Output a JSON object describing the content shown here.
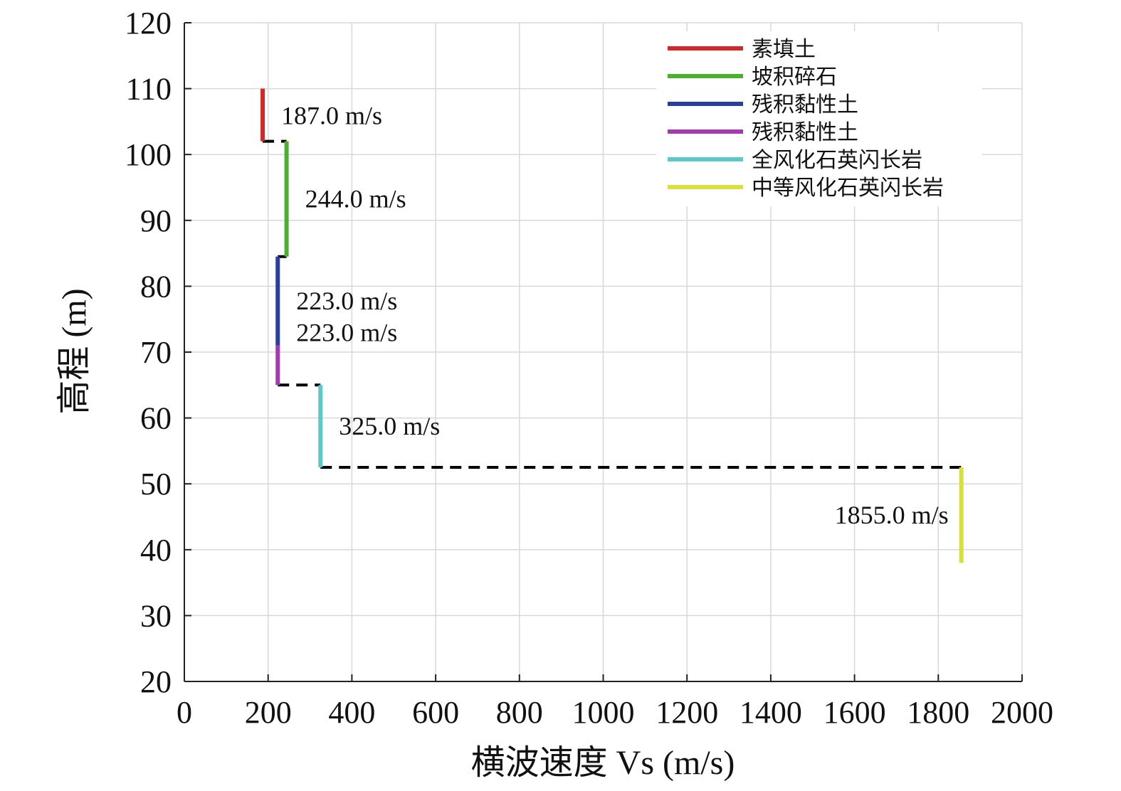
{
  "chart_data": {
    "type": "line",
    "xlabel": "横波速度 Vs (m/s)",
    "ylabel": "高程 (m)",
    "xlim": [
      0,
      2000
    ],
    "ylim": [
      20,
      120
    ],
    "xticks": [
      0,
      200,
      400,
      600,
      800,
      1000,
      1200,
      1400,
      1600,
      1800,
      2000
    ],
    "yticks": [
      20,
      30,
      40,
      50,
      60,
      70,
      80,
      90,
      100,
      110,
      120
    ],
    "grid": true,
    "legend_position": "top-right",
    "series": [
      {
        "name": "素填土",
        "color": "#d62728",
        "vs": 187.0,
        "top": 110,
        "bottom": 102,
        "label": "187.0 m/s"
      },
      {
        "name": "坡积碎石",
        "color": "#4caf2f",
        "vs": 244.0,
        "top": 102,
        "bottom": 84.5,
        "label": "244.0 m/s"
      },
      {
        "name": "残积黏性土",
        "color": "#2a3ea0",
        "vs": 223.0,
        "top": 84.5,
        "bottom": 71,
        "label": "223.0 m/s"
      },
      {
        "name": "残积黏性土",
        "color": "#a23ab0",
        "vs": 223.0,
        "top": 71,
        "bottom": 65,
        "label": "223.0 m/s"
      },
      {
        "name": "全风化石英闪长岩",
        "color": "#5cc8c8",
        "vs": 325.0,
        "top": 65,
        "bottom": 52.5,
        "label": "325.0 m/s"
      },
      {
        "name": "中等风化石英闪长岩",
        "color": "#d8e040",
        "vs": 1855.0,
        "top": 52.5,
        "bottom": 38,
        "label": "1855.0 m/s"
      }
    ],
    "transitions_color": "#000000"
  }
}
